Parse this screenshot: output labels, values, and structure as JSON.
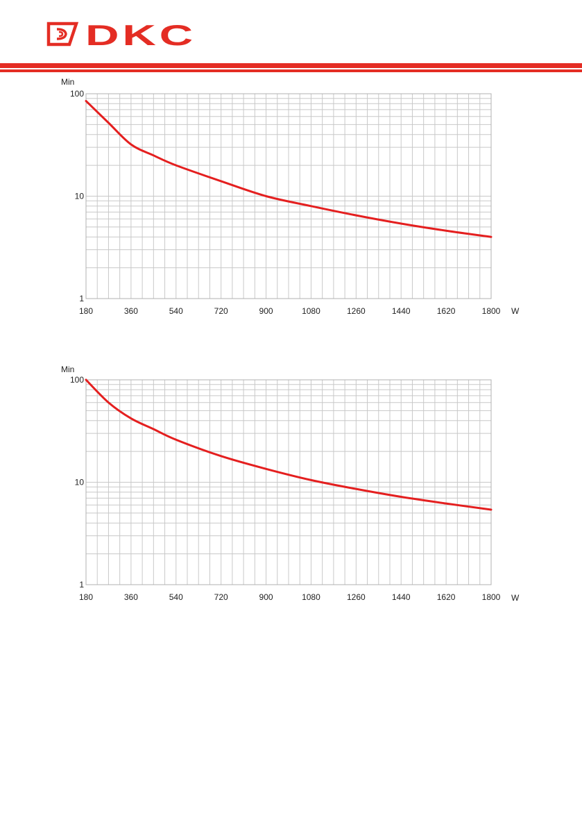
{
  "brand": {
    "name": "DKC",
    "color": "#e42d24"
  },
  "chart_data": [
    {
      "type": "line",
      "title": "",
      "xlabel": "W",
      "ylabel": "Min",
      "xlim": [
        180,
        1800
      ],
      "ylim": [
        1,
        100
      ],
      "y_scale": "log",
      "grid": true,
      "x_ticks": [
        "180",
        "360",
        "540",
        "720",
        "900",
        "1080",
        "1260",
        "1440",
        "1620",
        "1800"
      ],
      "y_ticks": [
        "1",
        "10",
        "100"
      ],
      "series": [
        {
          "color": "#e41f1f",
          "x": [
            180,
            270,
            360,
            450,
            540,
            720,
            900,
            1080,
            1260,
            1440,
            1620,
            1800
          ],
          "y": [
            85,
            52,
            32,
            25,
            20,
            14,
            10,
            8,
            6.5,
            5.4,
            4.6,
            4.0
          ]
        }
      ]
    },
    {
      "type": "line",
      "title": "",
      "xlabel": "W",
      "ylabel": "Min",
      "xlim": [
        180,
        1800
      ],
      "ylim": [
        1,
        100
      ],
      "y_scale": "log",
      "grid": true,
      "x_ticks": [
        "180",
        "360",
        "540",
        "720",
        "900",
        "1080",
        "1260",
        "1440",
        "1620",
        "1800"
      ],
      "y_ticks": [
        "1",
        "10",
        "100"
      ],
      "series": [
        {
          "color": "#e41f1f",
          "x": [
            180,
            270,
            360,
            450,
            540,
            720,
            900,
            1080,
            1260,
            1440,
            1620,
            1800
          ],
          "y": [
            100,
            60,
            42,
            33,
            26,
            18,
            13.5,
            10.5,
            8.6,
            7.2,
            6.2,
            5.4
          ]
        }
      ]
    }
  ]
}
